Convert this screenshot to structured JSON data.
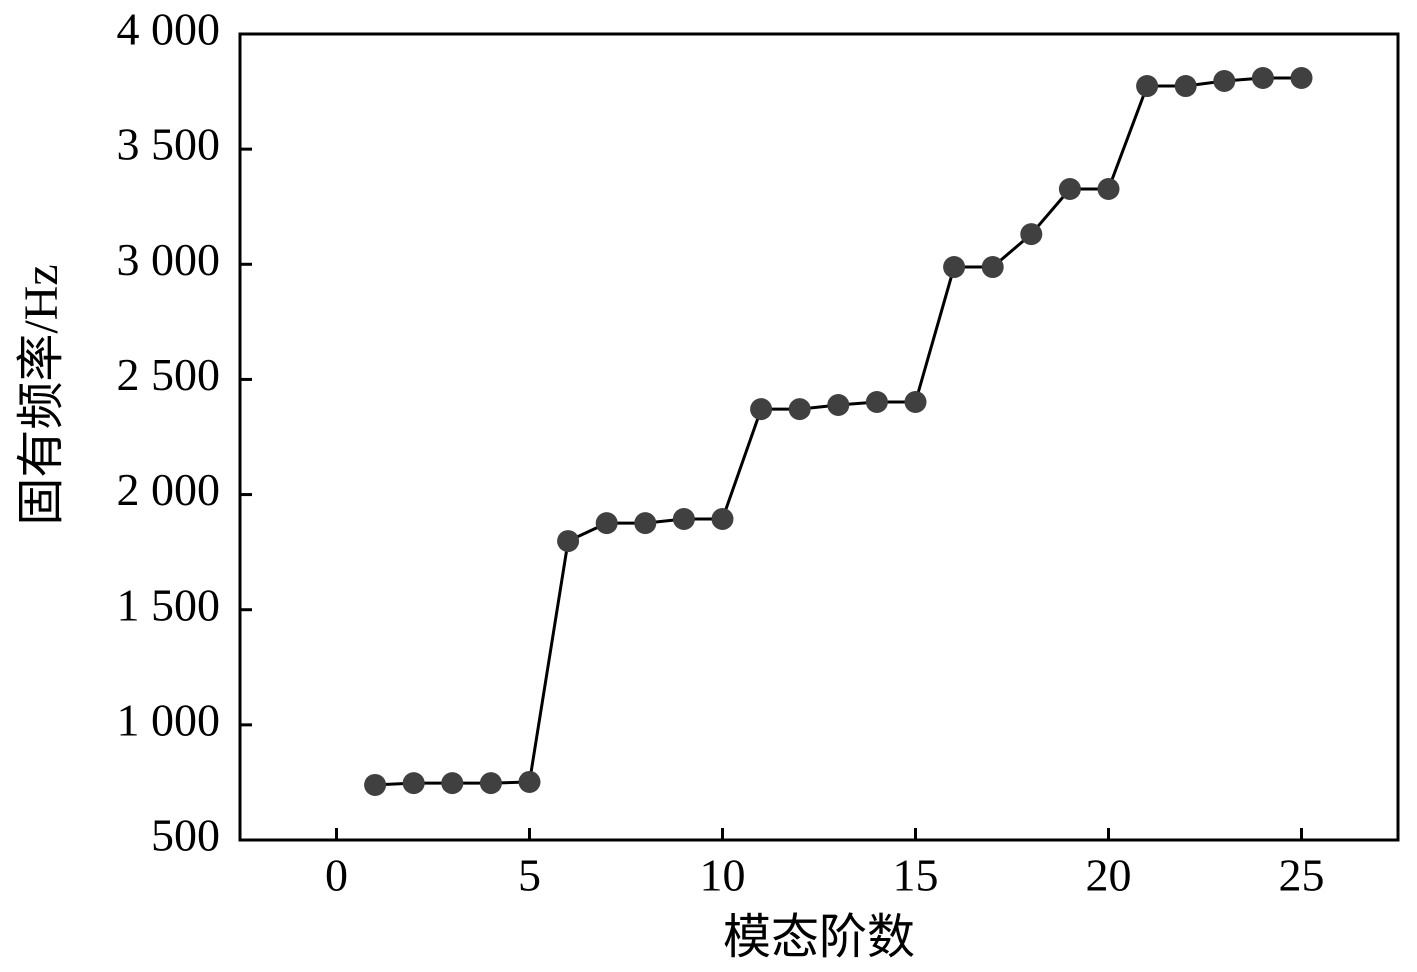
{
  "chart_data": {
    "type": "line",
    "x_label": "模态阶数",
    "y_label": "固有频率/Hz",
    "x": [
      1,
      2,
      3,
      4,
      5,
      6,
      7,
      8,
      9,
      10,
      11,
      12,
      13,
      14,
      15,
      16,
      17,
      18,
      19,
      20,
      21,
      22,
      23,
      24,
      25
    ],
    "series": [
      {
        "color": "#404040",
        "values": [
          739,
          747,
          747,
          747,
          752,
          1798,
          1876,
          1876,
          1894,
          1894,
          2371,
          2371,
          2389,
          2402,
          2402,
          2988,
          2988,
          3131,
          3327,
          3327,
          3774,
          3774,
          3796,
          3809,
          3809
        ]
      }
    ],
    "xlim": [
      -2.5,
      27.5
    ],
    "xticks": [
      0,
      5,
      10,
      15,
      20,
      25
    ],
    "ylim": [
      500,
      4000
    ],
    "yticks": [
      500,
      {
        "value": 1000,
        "label": "1 000"
      },
      {
        "value": 1500,
        "label": "1 500"
      },
      {
        "value": 2000,
        "label": "2 000"
      },
      {
        "value": 2500,
        "label": "2 500"
      },
      {
        "value": 3000,
        "label": "3 000"
      },
      {
        "value": 3500,
        "label": "3 500"
      },
      {
        "value": 4000,
        "label": "4 000"
      }
    ]
  }
}
